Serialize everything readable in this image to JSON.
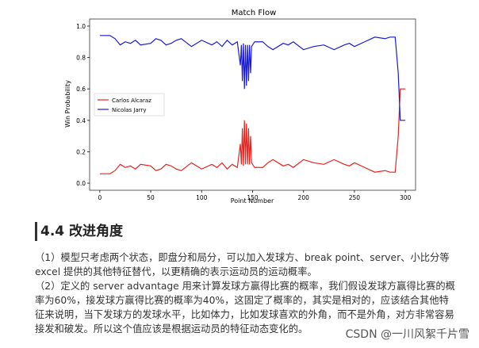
{
  "chart_data": {
    "type": "line",
    "title": "Match Flow",
    "xlabel": "Point Number",
    "ylabel": "Win Probability",
    "x": [
      0,
      10,
      15,
      20,
      25,
      30,
      35,
      40,
      50,
      55,
      60,
      65,
      70,
      75,
      80,
      90,
      95,
      100,
      110,
      115,
      120,
      125,
      130,
      135,
      138,
      139,
      140,
      141,
      142,
      143,
      144,
      145,
      146,
      147,
      148,
      149,
      150,
      152,
      160,
      165,
      170,
      180,
      185,
      190,
      200,
      210,
      220,
      230,
      240,
      245,
      250,
      260,
      270,
      280,
      285,
      290,
      293,
      295,
      300
    ],
    "series": [
      {
        "name": "Carlos Alcaraz",
        "color": "#e8231f",
        "values": [
          0.06,
          0.06,
          0.08,
          0.12,
          0.1,
          0.11,
          0.09,
          0.12,
          0.11,
          0.08,
          0.09,
          0.12,
          0.11,
          0.09,
          0.08,
          0.13,
          0.11,
          0.09,
          0.12,
          0.1,
          0.13,
          0.09,
          0.12,
          0.1,
          0.25,
          0.12,
          0.35,
          0.11,
          0.4,
          0.12,
          0.38,
          0.12,
          0.35,
          0.12,
          0.3,
          0.13,
          0.12,
          0.1,
          0.1,
          0.13,
          0.15,
          0.11,
          0.12,
          0.1,
          0.15,
          0.13,
          0.12,
          0.15,
          0.12,
          0.11,
          0.13,
          0.1,
          0.07,
          0.08,
          0.07,
          0.07,
          0.3,
          0.6,
          0.6
        ]
      },
      {
        "name": "Nicolas Jarry",
        "color": "#1a1adb",
        "values": [
          0.94,
          0.94,
          0.92,
          0.88,
          0.9,
          0.89,
          0.91,
          0.88,
          0.89,
          0.92,
          0.91,
          0.88,
          0.89,
          0.91,
          0.92,
          0.87,
          0.89,
          0.91,
          0.88,
          0.9,
          0.87,
          0.91,
          0.88,
          0.9,
          0.75,
          0.88,
          0.65,
          0.89,
          0.6,
          0.88,
          0.62,
          0.88,
          0.65,
          0.88,
          0.7,
          0.87,
          0.88,
          0.9,
          0.9,
          0.87,
          0.85,
          0.89,
          0.88,
          0.9,
          0.85,
          0.87,
          0.88,
          0.85,
          0.88,
          0.89,
          0.87,
          0.9,
          0.93,
          0.92,
          0.93,
          0.93,
          0.7,
          0.4,
          0.4
        ]
      }
    ],
    "xlim": [
      -10,
      310
    ],
    "xticks": [
      0,
      50,
      100,
      150,
      200,
      250,
      300
    ],
    "ylim": [
      -0.045,
      1.045
    ],
    "yticks": [
      {
        "value": 0,
        "label": "0.0"
      },
      {
        "value": 0.2,
        "label": "0.2"
      },
      {
        "value": 0.4,
        "label": "0.4"
      },
      {
        "value": 0.6,
        "label": "0.6"
      },
      {
        "value": 0.8,
        "label": "0.8"
      },
      {
        "value": 1,
        "label": "1.0"
      }
    ],
    "legend": "center left"
  },
  "heading": "4.4 改进角度",
  "paragraphs": [
    "（1）模型只考虑两个状态，即盘分和局分，可以加入发球方、break point、server、小比分等 excel 提供的其他特征替代，以更精确的表示运动员的运动概率。",
    "（2）定义的 server advantage 用来计算发球方赢得比赛的概率，我们假设发球方赢得比赛的概率为60%，接发球方赢得比赛的概率为40%，这固定了概率的，其实是相对的，应该结合其他特征来说明，当下发球方的发球水平，比如体力，比如发球喜欢的外角，而不是外角，对方非常容易接发和破发。所以这个值应该是根据运动员的特征动态变化的。"
  ],
  "watermark": "CSDN @一川风絮千片雪"
}
